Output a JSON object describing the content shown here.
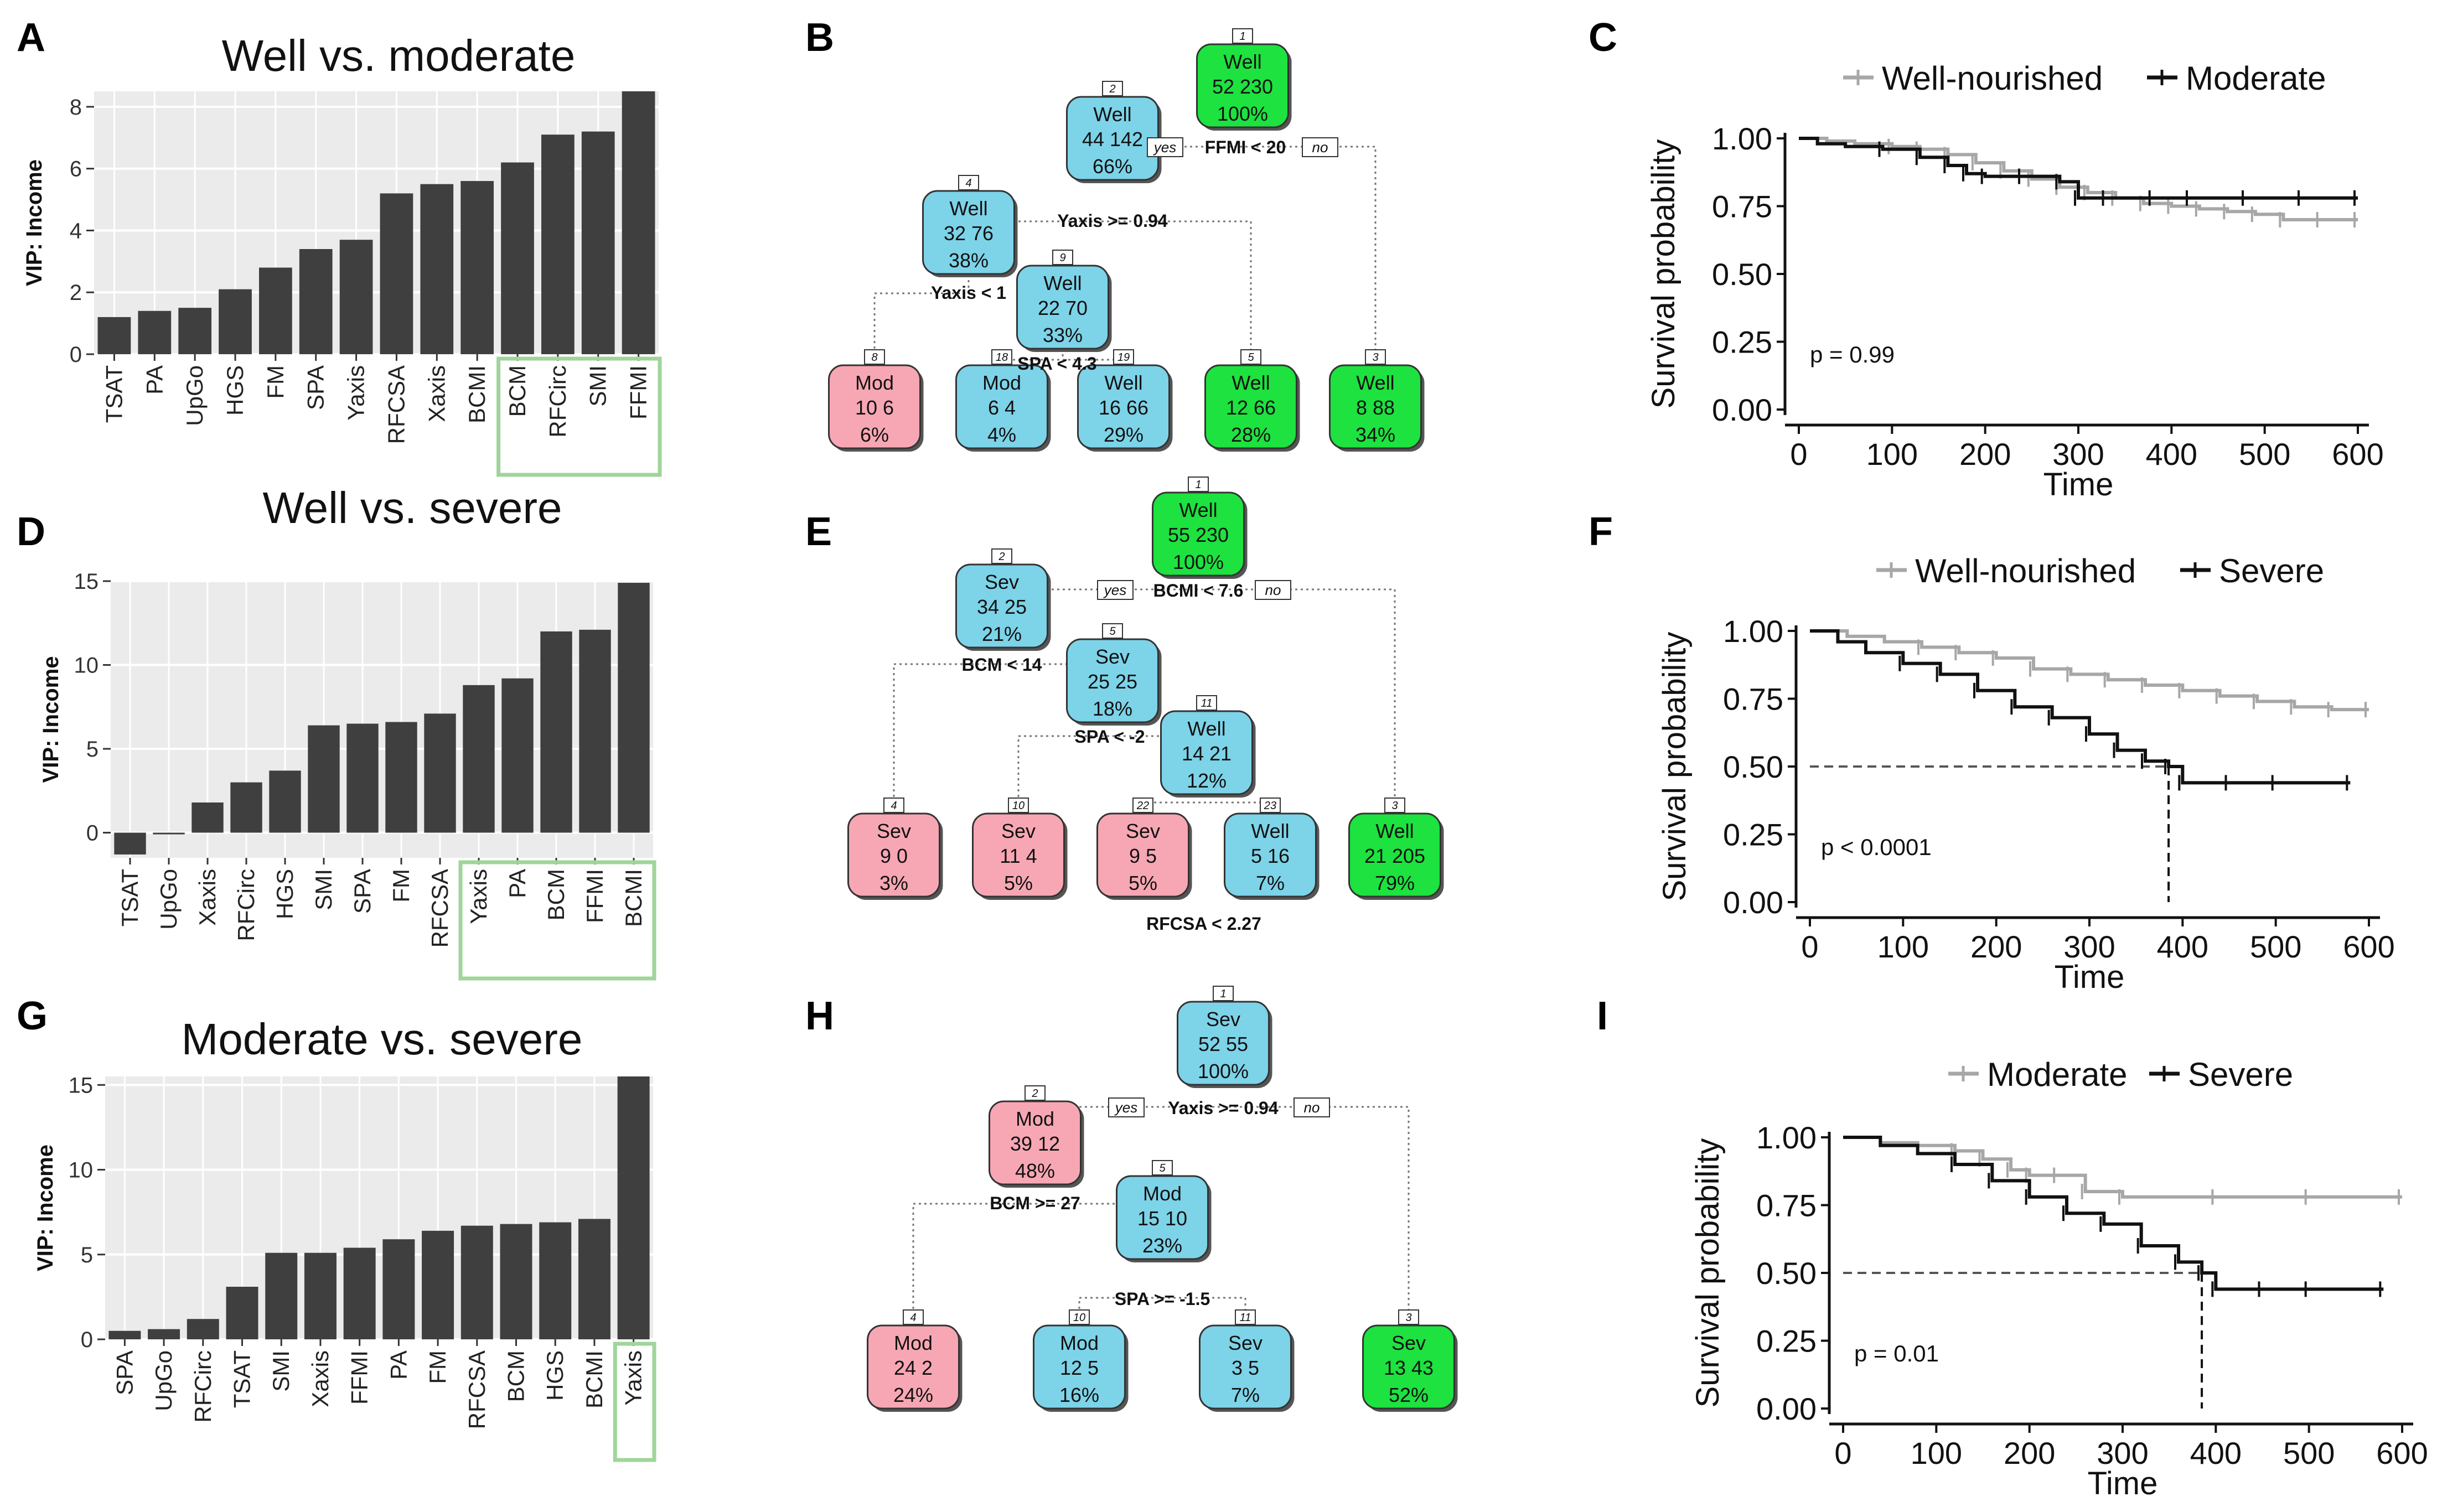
{
  "colors": {
    "bar": "#3f3f3f",
    "panel_bg": "#ebebeb",
    "grid": "#ffffff",
    "highlight_box": "#9fd59a",
    "node_mod": "#f7a7b4",
    "node_sev": "#f7a7b4",
    "node_blue": "#7dd3e8",
    "node_green": "#1de23f",
    "km_grey": "#a7a7a7",
    "km_black": "#111111"
  },
  "panel_letters": [
    "A",
    "B",
    "C",
    "D",
    "E",
    "F",
    "G",
    "H",
    "I"
  ],
  "chart_data": [
    {
      "id": "A",
      "type": "bar",
      "title": "Well vs. moderate",
      "ylabel": "VIP: Income",
      "ylim": [
        0,
        8.5
      ],
      "yticks": [
        0,
        2,
        4,
        6,
        8
      ],
      "grid": true,
      "categories": [
        "TSAT",
        "PA",
        "UpGo",
        "HGS",
        "FM",
        "SPA",
        "Yaxis",
        "RFCSA",
        "Xaxis",
        "BCMI",
        "BCM",
        "RFCirc",
        "SMI",
        "FFMI"
      ],
      "values": [
        1.2,
        1.4,
        1.5,
        2.1,
        2.8,
        3.4,
        3.7,
        5.2,
        5.5,
        5.6,
        6.2,
        7.1,
        7.2,
        8.5
      ],
      "highlight_categories": [
        "BCM",
        "RFCirc",
        "SMI",
        "FFMI"
      ]
    },
    {
      "id": "D",
      "type": "bar",
      "title": "Well vs. severe",
      "ylabel": "VIP: Income",
      "ylim": [
        -1.5,
        15
      ],
      "yticks": [
        0,
        5,
        10,
        15
      ],
      "grid": true,
      "categories": [
        "TSAT",
        "UpGo",
        "Xaxis",
        "RFCirc",
        "HGS",
        "SMI",
        "SPA",
        "FM",
        "RFCSA",
        "Yaxis",
        "PA",
        "BCM",
        "FFMI",
        "BCMI"
      ],
      "values": [
        -1.3,
        -0.1,
        1.8,
        3.0,
        3.7,
        6.4,
        6.5,
        6.6,
        7.1,
        8.8,
        9.2,
        12.0,
        12.1,
        14.9
      ],
      "highlight_categories": [
        "Yaxis",
        "PA",
        "BCM",
        "FFMI",
        "BCMI"
      ]
    },
    {
      "id": "G",
      "type": "bar",
      "title": "Moderate vs. severe",
      "ylabel": "VIP: Income",
      "ylim": [
        0,
        15.5
      ],
      "yticks": [
        0,
        5,
        10,
        15
      ],
      "grid": true,
      "categories": [
        "SPA",
        "UpGo",
        "RFCirc",
        "TSAT",
        "SMI",
        "Xaxis",
        "FFMI",
        "PA",
        "FM",
        "RFCSA",
        "BCM",
        "HGS",
        "BCMI",
        "Yaxis"
      ],
      "values": [
        0.5,
        0.6,
        1.2,
        3.1,
        5.1,
        5.1,
        5.4,
        5.9,
        6.4,
        6.7,
        6.8,
        6.9,
        7.1,
        15.5
      ],
      "highlight_categories": [
        "Yaxis"
      ]
    },
    {
      "id": "C",
      "type": "line",
      "title": "",
      "xlabel": "Time",
      "ylabel": "Survival probability",
      "xlim": [
        0,
        600
      ],
      "ylim": [
        0,
        1
      ],
      "xticks": [
        0,
        100,
        200,
        300,
        400,
        500,
        600
      ],
      "yticks": [
        "0.00",
        "0.25",
        "0.50",
        "0.75",
        "1.00"
      ],
      "legend": "top",
      "pvalue": "p = 0.99",
      "median_line": null,
      "series": [
        {
          "name": "Well-nourished",
          "color": "#a7a7a7",
          "x": [
            0,
            30,
            60,
            100,
            130,
            160,
            190,
            220,
            250,
            280,
            310,
            340,
            370,
            400,
            430,
            460,
            490,
            520,
            560,
            600
          ],
          "y": [
            1.0,
            0.99,
            0.98,
            0.97,
            0.96,
            0.94,
            0.91,
            0.88,
            0.85,
            0.82,
            0.8,
            0.78,
            0.76,
            0.75,
            0.74,
            0.73,
            0.72,
            0.7,
            0.7,
            0.7
          ]
        },
        {
          "name": "Moderate",
          "color": "#111111",
          "x": [
            0,
            20,
            50,
            90,
            130,
            160,
            180,
            200,
            240,
            280,
            300,
            330,
            380,
            420,
            480,
            540,
            600
          ],
          "y": [
            1.0,
            0.98,
            0.97,
            0.96,
            0.93,
            0.9,
            0.87,
            0.86,
            0.86,
            0.84,
            0.78,
            0.78,
            0.78,
            0.78,
            0.78,
            0.78,
            0.78
          ]
        }
      ]
    },
    {
      "id": "F",
      "type": "line",
      "title": "",
      "xlabel": "Time",
      "ylabel": "Survival probability",
      "xlim": [
        0,
        600
      ],
      "ylim": [
        0,
        1
      ],
      "xticks": [
        0,
        100,
        200,
        300,
        400,
        500,
        600
      ],
      "yticks": [
        "0.00",
        "0.25",
        "0.50",
        "0.75",
        "1.00"
      ],
      "legend": "top",
      "pvalue": "p < 0.0001",
      "median_line": {
        "x": 385,
        "y": 0.5
      },
      "series": [
        {
          "name": "Well-nourished",
          "color": "#a7a7a7",
          "x": [
            0,
            40,
            80,
            120,
            160,
            200,
            240,
            280,
            320,
            360,
            400,
            440,
            480,
            520,
            560,
            600
          ],
          "y": [
            1.0,
            0.98,
            0.96,
            0.94,
            0.92,
            0.9,
            0.86,
            0.84,
            0.82,
            0.8,
            0.78,
            0.76,
            0.74,
            0.72,
            0.71,
            0.71
          ]
        },
        {
          "name": "Severe",
          "color": "#111111",
          "x": [
            0,
            30,
            60,
            100,
            140,
            180,
            220,
            260,
            300,
            330,
            360,
            385,
            400,
            450,
            500,
            580
          ],
          "y": [
            1.0,
            0.96,
            0.92,
            0.88,
            0.84,
            0.78,
            0.72,
            0.68,
            0.62,
            0.56,
            0.52,
            0.5,
            0.44,
            0.44,
            0.44,
            0.44
          ]
        }
      ]
    },
    {
      "id": "I",
      "type": "line",
      "title": "",
      "xlabel": "Time",
      "ylabel": "Survival probability",
      "xlim": [
        0,
        600
      ],
      "ylim": [
        0,
        1
      ],
      "xticks": [
        0,
        100,
        200,
        300,
        400,
        500,
        600
      ],
      "yticks": [
        "0.00",
        "0.25",
        "0.50",
        "0.75",
        "1.00"
      ],
      "legend": "top",
      "pvalue": "p = 0.01",
      "median_line": {
        "x": 385,
        "y": 0.5
      },
      "series": [
        {
          "name": "Moderate",
          "color": "#a7a7a7",
          "x": [
            0,
            40,
            80,
            120,
            150,
            180,
            200,
            230,
            260,
            300,
            400,
            500,
            600
          ],
          "y": [
            1.0,
            0.98,
            0.97,
            0.95,
            0.92,
            0.88,
            0.86,
            0.86,
            0.8,
            0.78,
            0.78,
            0.78,
            0.78
          ]
        },
        {
          "name": "Severe",
          "color": "#111111",
          "x": [
            0,
            40,
            80,
            120,
            160,
            200,
            240,
            280,
            320,
            360,
            385,
            400,
            450,
            500,
            580
          ],
          "y": [
            1.0,
            0.97,
            0.94,
            0.9,
            0.84,
            0.78,
            0.72,
            0.68,
            0.6,
            0.54,
            0.5,
            0.44,
            0.44,
            0.44,
            0.44
          ]
        }
      ]
    }
  ],
  "trees": [
    {
      "id": "B",
      "nodes": [
        {
          "num": "1",
          "label": "Well",
          "counts": "52  230",
          "pct": "100%",
          "color": "green"
        },
        {
          "num": "2",
          "label": "Well",
          "counts": "44  142",
          "pct": "66%",
          "color": "blue"
        },
        {
          "num": "4",
          "label": "Well",
          "counts": "32  76",
          "pct": "38%",
          "color": "blue"
        },
        {
          "num": "9",
          "label": "Well",
          "counts": "22  70",
          "pct": "33%",
          "color": "blue"
        },
        {
          "num": "8",
          "label": "Mod",
          "counts": "10  6",
          "pct": "6%",
          "color": "pink"
        },
        {
          "num": "18",
          "label": "Mod",
          "counts": "6  4",
          "pct": "4%",
          "color": "blue"
        },
        {
          "num": "19",
          "label": "Well",
          "counts": "16  66",
          "pct": "29%",
          "color": "blue"
        },
        {
          "num": "5",
          "label": "Well",
          "counts": "12  66",
          "pct": "28%",
          "color": "green"
        },
        {
          "num": "3",
          "label": "Well",
          "counts": "8  88",
          "pct": "34%",
          "color": "green"
        }
      ],
      "splits": [
        "FFMI < 20",
        "Yaxis >= 0.94",
        "Yaxis < 1",
        "SPA < 4.3"
      ],
      "yes_label": "yes",
      "no_label": "no"
    },
    {
      "id": "E",
      "nodes": [
        {
          "num": "1",
          "label": "Well",
          "counts": "55  230",
          "pct": "100%",
          "color": "green"
        },
        {
          "num": "2",
          "label": "Sev",
          "counts": "34  25",
          "pct": "21%",
          "color": "blue"
        },
        {
          "num": "5",
          "label": "Sev",
          "counts": "25  25",
          "pct": "18%",
          "color": "blue"
        },
        {
          "num": "11",
          "label": "Well",
          "counts": "14  21",
          "pct": "12%",
          "color": "blue"
        },
        {
          "num": "4",
          "label": "Sev",
          "counts": "9  0",
          "pct": "3%",
          "color": "pink"
        },
        {
          "num": "10",
          "label": "Sev",
          "counts": "11  4",
          "pct": "5%",
          "color": "pink"
        },
        {
          "num": "22",
          "label": "Sev",
          "counts": "9  5",
          "pct": "5%",
          "color": "pink"
        },
        {
          "num": "23",
          "label": "Well",
          "counts": "5  16",
          "pct": "7%",
          "color": "blue"
        },
        {
          "num": "3",
          "label": "Well",
          "counts": "21  205",
          "pct": "79%",
          "color": "green"
        }
      ],
      "splits": [
        "BCMI < 7.6",
        "BCM < 14",
        "SPA < -2",
        "RFCSA < 2.27"
      ],
      "yes_label": "yes",
      "no_label": "no"
    },
    {
      "id": "H",
      "nodes": [
        {
          "num": "1",
          "label": "Sev",
          "counts": "52  55",
          "pct": "100%",
          "color": "blue"
        },
        {
          "num": "2",
          "label": "Mod",
          "counts": "39  12",
          "pct": "48%",
          "color": "pink"
        },
        {
          "num": "5",
          "label": "Mod",
          "counts": "15  10",
          "pct": "23%",
          "color": "blue"
        },
        {
          "num": "4",
          "label": "Mod",
          "counts": "24  2",
          "pct": "24%",
          "color": "pink"
        },
        {
          "num": "10",
          "label": "Mod",
          "counts": "12  5",
          "pct": "16%",
          "color": "blue"
        },
        {
          "num": "11",
          "label": "Sev",
          "counts": "3  5",
          "pct": "7%",
          "color": "blue"
        },
        {
          "num": "3",
          "label": "Sev",
          "counts": "13  43",
          "pct": "52%",
          "color": "green"
        }
      ],
      "splits": [
        "Yaxis >= 0.94",
        "BCM >= 27",
        "SPA >= -1.5"
      ],
      "yes_label": "yes",
      "no_label": "no"
    }
  ]
}
